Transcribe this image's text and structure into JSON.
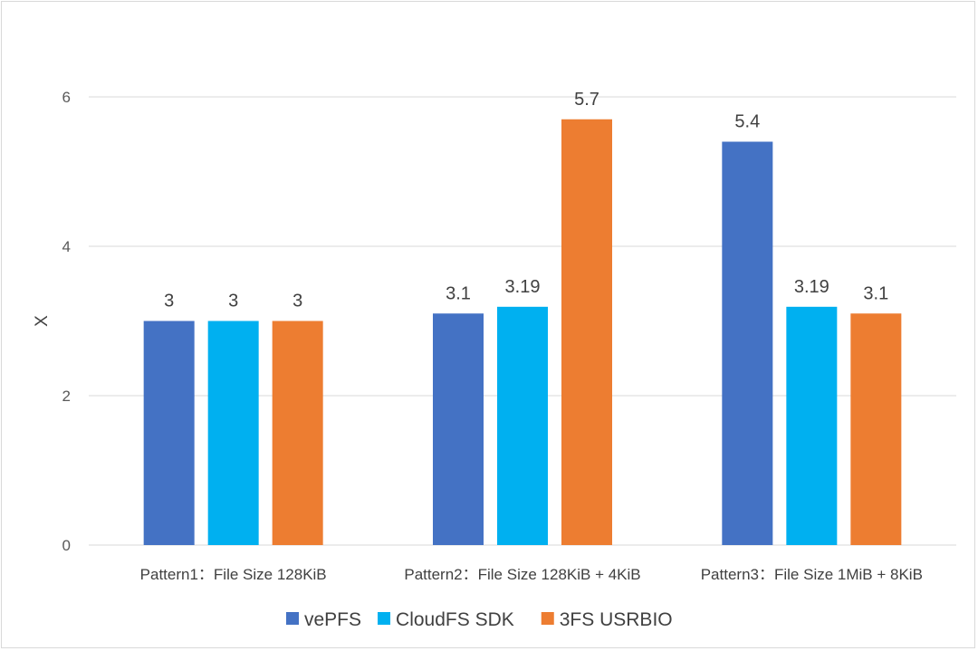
{
  "chart_data": {
    "type": "bar",
    "title": "",
    "xlabel": "",
    "ylabel": "X",
    "ylim": [
      0,
      6
    ],
    "yticks": [
      0,
      2,
      4,
      6
    ],
    "grid": true,
    "legend_position": "bottom",
    "categories": [
      "Pattern1：File Size 128KiB",
      "Pattern2：File Size 128KiB + 4KiB",
      "Pattern3：File Size 1MiB + 8KiB"
    ],
    "series": [
      {
        "name": "vePFS",
        "color": "#4472C4",
        "values": [
          3,
          3.1,
          5.4
        ],
        "labels": [
          "3",
          "3.1",
          "5.4"
        ]
      },
      {
        "name": "CloudFS SDK",
        "color": "#00B0F0",
        "values": [
          3,
          3.19,
          3.19
        ],
        "labels": [
          "3",
          "3.19",
          "3.19"
        ]
      },
      {
        "name": "3FS USRBIO",
        "color": "#ED7D31",
        "values": [
          3,
          5.7,
          3.1
        ],
        "labels": [
          "3",
          "5.7",
          "3.1"
        ]
      }
    ]
  }
}
